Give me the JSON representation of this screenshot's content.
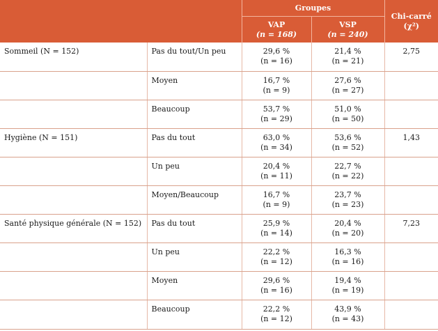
{
  "header": {
    "groups": "Groupes",
    "vap_name": "VAP",
    "vap_n": "(n = 168)",
    "vsp_name": "VSP",
    "vsp_n": "(n = 240)",
    "chi_title": "Chi-carré",
    "chi_symbol": "(χ²)"
  },
  "rows": [
    {
      "category": "Sommeil (N = 152)",
      "level": "Pas du tout/Un peu",
      "vap_pct": "29,6 %",
      "vap_n": "(n = 16)",
      "vsp_pct": "21,4 %",
      "vsp_n": "(n = 21)",
      "chi": "2,75"
    },
    {
      "category": "",
      "level": "Moyen",
      "vap_pct": "16,7 %",
      "vap_n": "(n = 9)",
      "vsp_pct": "27,6 %",
      "vsp_n": "(n = 27)",
      "chi": ""
    },
    {
      "category": "",
      "level": "Beaucoup",
      "vap_pct": "53,7 %",
      "vap_n": "(n = 29)",
      "vsp_pct": "51,0 %",
      "vsp_n": "(n = 50)",
      "chi": ""
    },
    {
      "category": "Hygiène (N = 151)",
      "level": "Pas du tout",
      "vap_pct": "63,0 %",
      "vap_n": "(n = 34)",
      "vsp_pct": "53,6 %",
      "vsp_n": "(n = 52)",
      "chi": "1,43"
    },
    {
      "category": "",
      "level": "Un peu",
      "vap_pct": "20,4 %",
      "vap_n": "(n = 11)",
      "vsp_pct": "22,7 %",
      "vsp_n": "(n = 22)",
      "chi": ""
    },
    {
      "category": "",
      "level": "Moyen/Beaucoup",
      "vap_pct": "16,7 %",
      "vap_n": "(n = 9)",
      "vsp_pct": "23,7 %",
      "vsp_n": "(n = 23)",
      "chi": ""
    },
    {
      "category": "Santé physique générale (N = 152)",
      "level": "Pas du tout",
      "vap_pct": "25,9 %",
      "vap_n": "(n = 14)",
      "vsp_pct": "20,4 %",
      "vsp_n": "(n = 20)",
      "chi": "7,23"
    },
    {
      "category": "",
      "level": "Un peu",
      "vap_pct": "22,2 %",
      "vap_n": "(n = 12)",
      "vsp_pct": "16,3 %",
      "vsp_n": "(n = 16)",
      "chi": ""
    },
    {
      "category": "",
      "level": "Moyen",
      "vap_pct": "29,6 %",
      "vap_n": "(n = 16)",
      "vsp_pct": "19,4 %",
      "vsp_n": "(n = 19)",
      "chi": ""
    },
    {
      "category": "",
      "level": "Beaucoup",
      "vap_pct": "22,2 %",
      "vap_n": "(n = 12)",
      "vsp_pct": "43,9 %",
      "vsp_n": "(n = 43)",
      "chi": ""
    }
  ]
}
